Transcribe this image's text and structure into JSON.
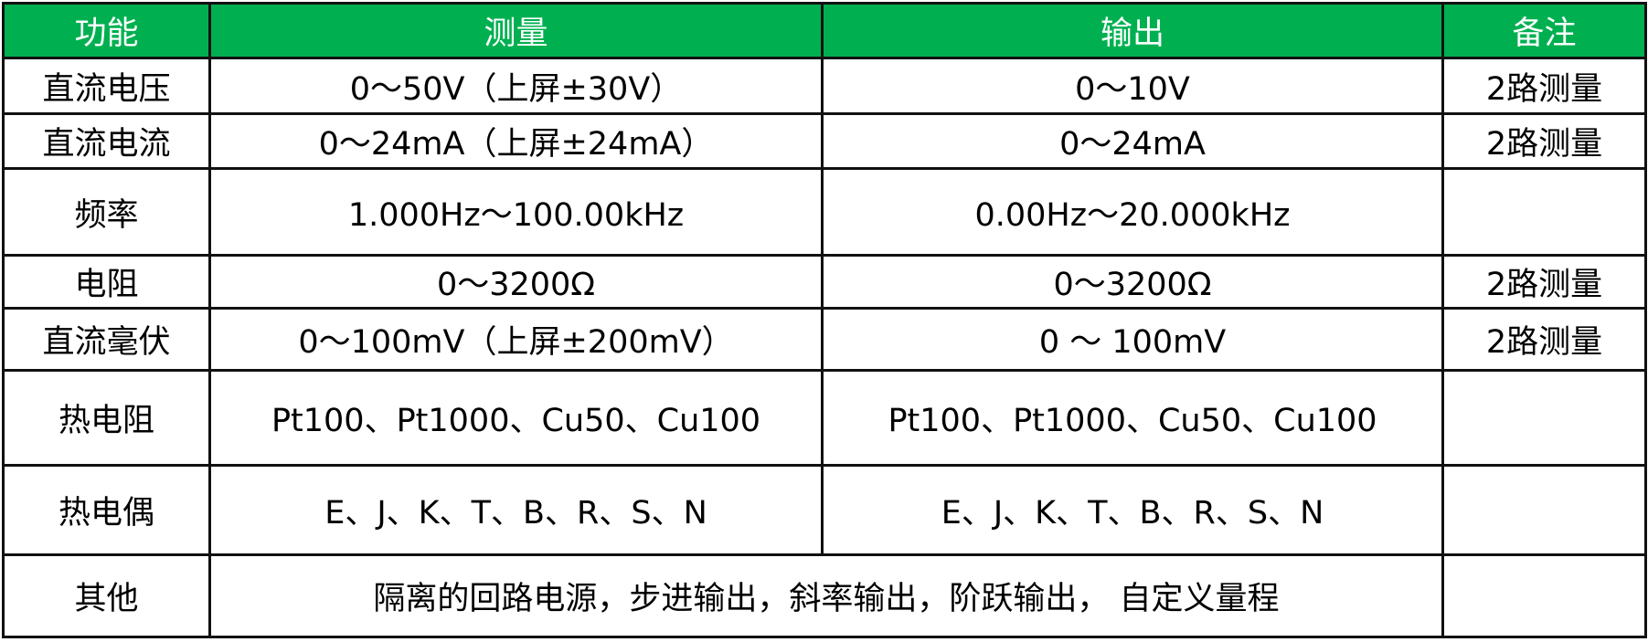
{
  "header_color": "#00b050",
  "headers": [
    "功能",
    "测量",
    "输出",
    "备注"
  ],
  "rows": [
    {
      "func": "直流电压",
      "measure": "0～50V（上屏±30V）",
      "output": "0～10V",
      "note": "2路测量"
    },
    {
      "func": "直流电流",
      "measure": "0～24mA（上屏±24mA）",
      "output": "0～24mA",
      "note": "2路测量"
    },
    {
      "func": "频率",
      "measure": "1.000Hz～100.00kHz",
      "output": "0.00Hz～20.000kHz",
      "note": ""
    },
    {
      "func": "电阻",
      "measure": "0～3200Ω",
      "output": "0～3200Ω",
      "note": "2路测量"
    },
    {
      "func": "直流毫伏",
      "measure": "0～100mV（上屏±200mV）",
      "output": "0 ～ 100mV",
      "note": "2路测量"
    },
    {
      "func": "热电阻",
      "measure": "Pt100、Pt1000、Cu50、Cu100",
      "output": "Pt100、Pt1000、Cu50、Cu100",
      "note": ""
    },
    {
      "func": "热电偶",
      "measure": "E、J、K、T、B、R、S、N",
      "output": "E、J、K、T、B、R、S、N",
      "note": ""
    }
  ],
  "other": {
    "func": "其他",
    "text": "隔离的回路电源，步进输出，斜率输出，阶跃输出， 自定义量程",
    "note": ""
  }
}
